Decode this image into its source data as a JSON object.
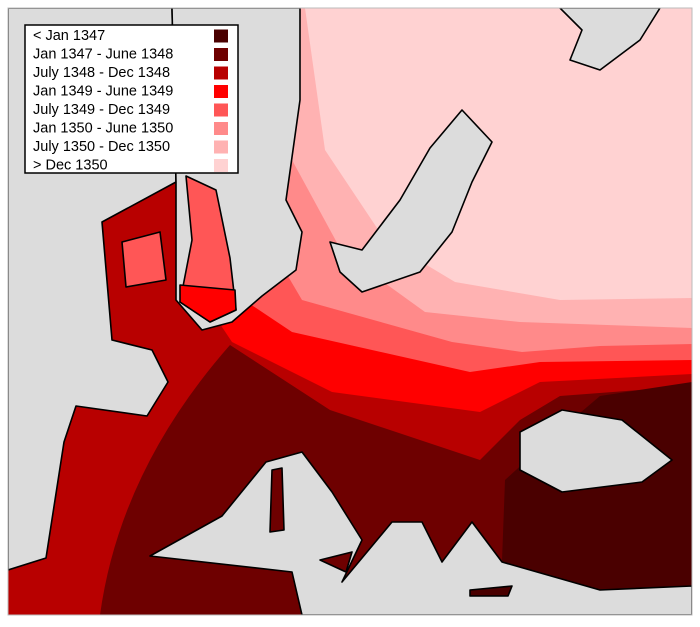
{
  "legend": {
    "items": [
      {
        "label": "< Jan 1347",
        "color": "#4a0000"
      },
      {
        "label": "Jan 1347 - June 1348",
        "color": "#6e0000"
      },
      {
        "label": "July 1348 - Dec 1348",
        "color": "#b80000"
      },
      {
        "label": "Jan 1349 - June 1349",
        "color": "#ff0000"
      },
      {
        "label": "July 1349 - Dec 1349",
        "color": "#ff5656"
      },
      {
        "label": "Jan 1350 - June 1350",
        "color": "#ff8a8a"
      },
      {
        "label": "July 1350 - Dec 1350",
        "color": "#ffb2b2"
      },
      {
        "label": "> Dec 1350",
        "color": "#ffd2d2"
      }
    ]
  }
}
